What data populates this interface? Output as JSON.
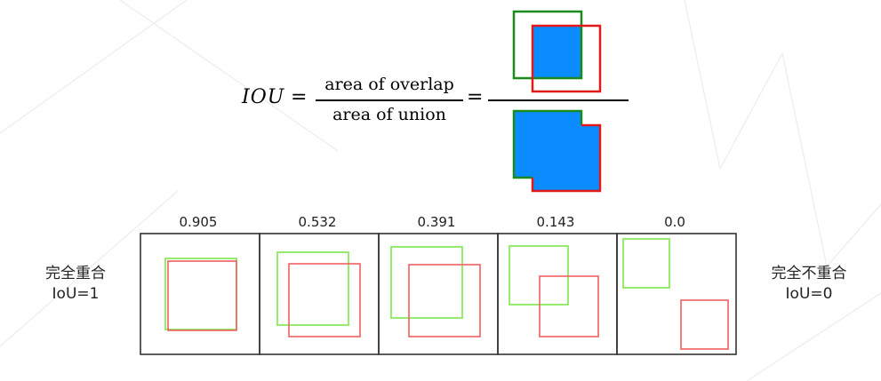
{
  "formula": {
    "lhs": "IOU",
    "equals": "=",
    "numerator": "area of overlap",
    "denominator": "area of union"
  },
  "examples": [
    {
      "score": "0.905",
      "value": 0.905
    },
    {
      "score": "0.532",
      "value": 0.532
    },
    {
      "score": "0.391",
      "value": 0.391
    },
    {
      "score": "0.143",
      "value": 0.143
    },
    {
      "score": "0.0",
      "value": 0.0
    }
  ],
  "captions": {
    "left_line1": "完全重合",
    "left_line2": "IoU=1",
    "right_line1": "完全不重合",
    "right_line2": "IoU=0"
  },
  "colors": {
    "ground_truth_box": "#1a8a1a",
    "predicted_box": "#e01a1a",
    "fill": "#0a8cff",
    "panel_green": "#7de84a",
    "panel_red": "#f06060"
  }
}
